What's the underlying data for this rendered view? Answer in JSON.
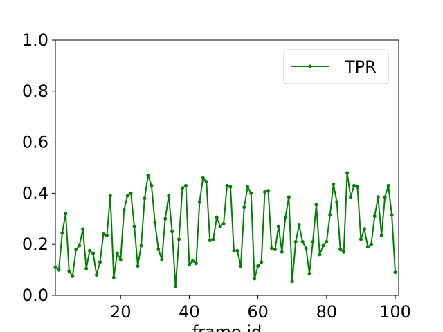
{
  "chart_data": {
    "type": "line",
    "xlabel": "frame id",
    "ylabel": "",
    "xlim": [
      1,
      101
    ],
    "ylim": [
      0.0,
      1.0
    ],
    "xticks": [
      20,
      40,
      60,
      80,
      100
    ],
    "yticks": [
      0.0,
      0.2,
      0.4,
      0.6,
      0.8,
      1.0
    ],
    "ytick_labels": [
      "0.0",
      "0.2",
      "0.4",
      "0.6",
      "0.8",
      "1.0"
    ],
    "xtick_labels": [
      "20",
      "40",
      "60",
      "80",
      "100"
    ],
    "grid": false,
    "legend_position": "top-right",
    "series": [
      {
        "name": "TPR",
        "color": "#008000",
        "marker": "dot",
        "x": [
          1,
          2,
          3,
          4,
          5,
          6,
          7,
          8,
          9,
          10,
          11,
          12,
          13,
          14,
          15,
          16,
          17,
          18,
          19,
          20,
          21,
          22,
          23,
          24,
          25,
          26,
          27,
          28,
          29,
          30,
          31,
          32,
          33,
          34,
          35,
          36,
          37,
          38,
          39,
          40,
          41,
          42,
          43,
          44,
          45,
          46,
          47,
          48,
          49,
          50,
          51,
          52,
          53,
          54,
          55,
          56,
          57,
          58,
          59,
          60,
          61,
          62,
          63,
          64,
          65,
          66,
          67,
          68,
          69,
          70,
          71,
          72,
          73,
          74,
          75,
          76,
          77,
          78,
          79,
          80,
          81,
          82,
          83,
          84,
          85,
          86,
          87,
          88,
          89,
          90,
          91,
          92,
          93,
          94,
          95,
          96,
          97,
          98,
          99,
          100
        ],
        "values": [
          0.11,
          0.1,
          0.245,
          0.32,
          0.095,
          0.075,
          0.18,
          0.195,
          0.26,
          0.105,
          0.175,
          0.165,
          0.08,
          0.13,
          0.24,
          0.235,
          0.39,
          0.07,
          0.165,
          0.14,
          0.335,
          0.39,
          0.4,
          0.27,
          0.115,
          0.195,
          0.38,
          0.47,
          0.43,
          0.285,
          0.18,
          0.14,
          0.3,
          0.39,
          0.25,
          0.035,
          0.22,
          0.42,
          0.43,
          0.12,
          0.135,
          0.125,
          0.365,
          0.46,
          0.445,
          0.215,
          0.22,
          0.305,
          0.27,
          0.28,
          0.43,
          0.425,
          0.175,
          0.175,
          0.115,
          0.345,
          0.425,
          0.4,
          0.065,
          0.115,
          0.13,
          0.405,
          0.41,
          0.185,
          0.18,
          0.27,
          0.17,
          0.305,
          0.385,
          0.055,
          0.21,
          0.275,
          0.21,
          0.185,
          0.085,
          0.21,
          0.355,
          0.16,
          0.195,
          0.21,
          0.315,
          0.435,
          0.365,
          0.18,
          0.17,
          0.48,
          0.385,
          0.43,
          0.425,
          0.22,
          0.26,
          0.19,
          0.2,
          0.31,
          0.385,
          0.235,
          0.385,
          0.43,
          0.315,
          0.09
        ]
      }
    ]
  }
}
